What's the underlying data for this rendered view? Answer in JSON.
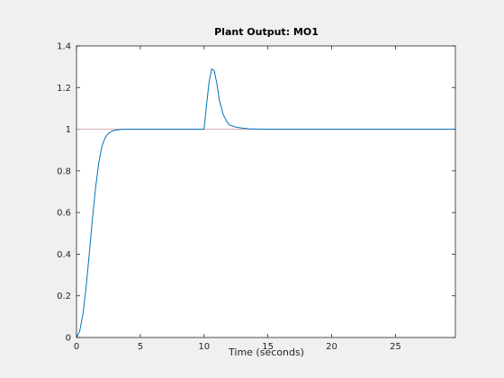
{
  "chart_data": {
    "type": "line",
    "title": "Plant Output:  MO1",
    "xlabel": "Time (seconds)",
    "ylabel": "",
    "xlim": [
      0,
      29.7
    ],
    "ylim": [
      0,
      1.4
    ],
    "xticks": [
      0,
      5,
      10,
      15,
      20,
      25
    ],
    "yticks": [
      0,
      0.2,
      0.4,
      0.6,
      0.8,
      1,
      1.2,
      1.4
    ],
    "xtick_labels": [
      "0",
      "5",
      "10",
      "15",
      "20",
      "25"
    ],
    "ytick_labels": [
      "0",
      "0.2",
      "0.4",
      "0.6",
      "0.8",
      "1",
      "1.2",
      "1.4"
    ],
    "grid": false,
    "colors": {
      "output": "#0072bd",
      "reference": "#d9a6a6",
      "axes_bg": "#ffffff",
      "figure_bg": "#f0f0f0",
      "axis": "#262626"
    },
    "reference": {
      "x": [
        0,
        29.7
      ],
      "y": [
        1,
        1
      ]
    },
    "series": [
      {
        "x": [
          0,
          0.25,
          0.5,
          0.75,
          1.0,
          1.25,
          1.5,
          1.75,
          2.0,
          2.25,
          2.5,
          2.75,
          3.0,
          3.5,
          4.0,
          5.0,
          6.0,
          7.0,
          8.0,
          9.0,
          9.9,
          10.0,
          10.2,
          10.4,
          10.6,
          10.8,
          11.0,
          11.2,
          11.5,
          11.8,
          12.0,
          12.5,
          13.0,
          13.5,
          14.0,
          15.0,
          16.0,
          20.0,
          25.0,
          29.7
        ],
        "y": [
          0,
          0.03,
          0.11,
          0.24,
          0.4,
          0.57,
          0.72,
          0.84,
          0.92,
          0.96,
          0.98,
          0.99,
          0.995,
          0.999,
          1.0,
          1.0,
          1.0,
          1.0,
          1.0,
          1.0,
          1.0,
          1.0,
          1.12,
          1.23,
          1.29,
          1.28,
          1.22,
          1.14,
          1.07,
          1.035,
          1.02,
          1.01,
          1.005,
          1.002,
          1.001,
          1.0,
          1.0,
          1.0,
          1.0,
          1.0
        ]
      }
    ]
  }
}
